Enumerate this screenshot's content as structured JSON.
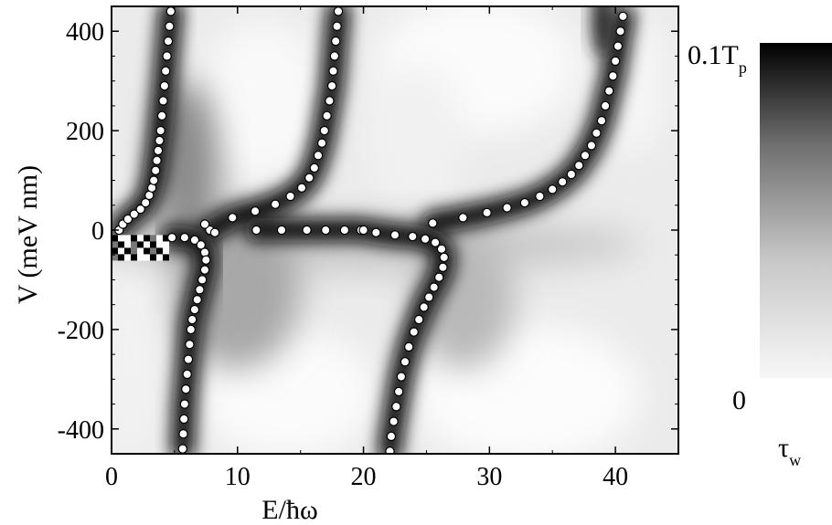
{
  "chart_data": {
    "type": "heatmap",
    "xlabel_main": "E/",
    "xlabel_hbar": "ħ",
    "xlabel_omega": "ω",
    "ylabel": "V (meV nm)",
    "xlim": [
      0,
      45
    ],
    "ylim": [
      -450,
      450
    ],
    "x_ticks": [
      0,
      10,
      20,
      30,
      40
    ],
    "y_ticks": [
      400,
      200,
      0,
      -200,
      -400
    ],
    "x_tick_labels": [
      "0",
      "10",
      "20",
      "30",
      "40"
    ],
    "y_tick_labels": [
      "400",
      "200",
      "0",
      "-200",
      "-400"
    ],
    "colorbar": {
      "top_label_main": "0.1T",
      "top_label_sub": "p",
      "bottom_label": "0",
      "quantity_main": "τ",
      "quantity_sub": "w"
    },
    "series": [
      {
        "marker": "open-circle",
        "points": [
          [
            0.6,
            0
          ],
          [
            0.9,
            12
          ],
          [
            1.3,
            22
          ],
          [
            1.8,
            32
          ],
          [
            2.3,
            42
          ],
          [
            2.7,
            55
          ],
          [
            3.0,
            70
          ],
          [
            3.2,
            85
          ],
          [
            3.35,
            100
          ],
          [
            3.5,
            120
          ],
          [
            3.6,
            140
          ],
          [
            3.7,
            160
          ],
          [
            3.8,
            180
          ],
          [
            3.9,
            200
          ],
          [
            4.0,
            230
          ],
          [
            4.1,
            260
          ],
          [
            4.2,
            290
          ],
          [
            4.3,
            320
          ],
          [
            4.4,
            350
          ],
          [
            4.5,
            380
          ],
          [
            4.6,
            410
          ],
          [
            4.7,
            440
          ]
        ]
      },
      {
        "marker": "open-circle",
        "points": [
          [
            7.8,
            0
          ],
          [
            9.6,
            25
          ],
          [
            11.4,
            38
          ],
          [
            13.0,
            52
          ],
          [
            14.2,
            68
          ],
          [
            15.1,
            85
          ],
          [
            15.7,
            105
          ],
          [
            16.1,
            125
          ],
          [
            16.4,
            150
          ],
          [
            16.7,
            175
          ],
          [
            16.9,
            200
          ],
          [
            17.1,
            230
          ],
          [
            17.3,
            260
          ],
          [
            17.5,
            290
          ],
          [
            17.6,
            320
          ],
          [
            17.7,
            350
          ],
          [
            17.8,
            380
          ],
          [
            17.9,
            410
          ],
          [
            18.0,
            440
          ]
        ]
      },
      {
        "marker": "open-circle",
        "points": [
          [
            25.5,
            14
          ],
          [
            27.9,
            25
          ],
          [
            29.8,
            35
          ],
          [
            31.4,
            45
          ],
          [
            32.8,
            55
          ],
          [
            34.0,
            68
          ],
          [
            35.0,
            82
          ],
          [
            35.8,
            97
          ],
          [
            36.5,
            112
          ],
          [
            37.1,
            130
          ],
          [
            37.6,
            150
          ],
          [
            38.1,
            170
          ],
          [
            38.5,
            195
          ],
          [
            38.9,
            220
          ],
          [
            39.2,
            250
          ],
          [
            39.5,
            280
          ],
          [
            39.8,
            310
          ],
          [
            40.0,
            340
          ],
          [
            40.2,
            370
          ],
          [
            40.4,
            400
          ],
          [
            40.6,
            430
          ]
        ]
      },
      {
        "marker": "open-circle",
        "points": [
          [
            4.8,
            -15
          ],
          [
            5.8,
            -15
          ],
          [
            6.6,
            -20
          ],
          [
            7.1,
            -30
          ],
          [
            7.4,
            -45
          ],
          [
            7.5,
            -60
          ],
          [
            7.4,
            -80
          ],
          [
            7.2,
            -100
          ],
          [
            7.0,
            -120
          ],
          [
            6.8,
            -140
          ],
          [
            6.6,
            -160
          ],
          [
            6.4,
            -180
          ],
          [
            6.3,
            -200
          ],
          [
            6.2,
            -230
          ],
          [
            6.1,
            -260
          ],
          [
            6.0,
            -290
          ],
          [
            5.9,
            -320
          ],
          [
            5.8,
            -350
          ],
          [
            5.75,
            -380
          ],
          [
            5.7,
            -410
          ],
          [
            5.65,
            -440
          ]
        ]
      },
      {
        "marker": "open-circle",
        "points": [
          [
            11.5,
            0
          ],
          [
            13.5,
            0
          ],
          [
            15.5,
            0
          ],
          [
            17.0,
            0
          ],
          [
            18.5,
            0
          ],
          [
            19.8,
            0
          ],
          [
            21.0,
            -5
          ],
          [
            22.5,
            -10
          ],
          [
            23.9,
            -13
          ],
          [
            24.9,
            -18
          ],
          [
            25.7,
            -25
          ],
          [
            26.2,
            -38
          ],
          [
            26.4,
            -55
          ],
          [
            26.3,
            -75
          ],
          [
            26.0,
            -95
          ],
          [
            25.6,
            -115
          ],
          [
            25.2,
            -135
          ],
          [
            24.8,
            -155
          ],
          [
            24.4,
            -180
          ],
          [
            24.0,
            -205
          ],
          [
            23.6,
            -235
          ],
          [
            23.3,
            -265
          ],
          [
            23.0,
            -295
          ],
          [
            22.8,
            -325
          ],
          [
            22.6,
            -355
          ],
          [
            22.4,
            -385
          ],
          [
            22.2,
            -415
          ],
          [
            22.1,
            -445
          ]
        ]
      },
      {
        "marker": "open-circle",
        "points": [
          [
            8.2,
            -5
          ],
          [
            7.4,
            12
          ],
          [
            20.0,
            0
          ]
        ]
      }
    ]
  }
}
